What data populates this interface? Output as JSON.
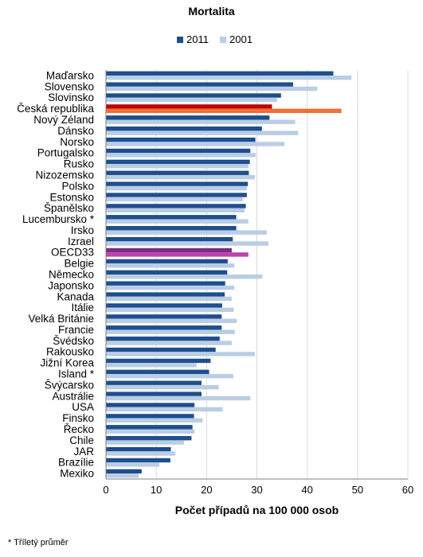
{
  "footnote": "* Tříletý průměr",
  "chart_data": {
    "type": "bar",
    "orientation": "horizontal",
    "title": "Mortalita",
    "xlabel": "Počet případů na 100 000 osob",
    "ylabel": "",
    "xlim": [
      0,
      60
    ],
    "xticks": [
      "0",
      "10",
      "20",
      "30",
      "40",
      "50",
      "60"
    ],
    "grid": true,
    "legend_position": "top",
    "categories": [
      "Maďarsko",
      "Slovensko",
      "Slovinsko",
      "Česká republika",
      "Nový Zéland",
      "Dánsko",
      "Norsko",
      "Portugalsko",
      "Rusko",
      "Nizozemsko",
      "Polsko",
      "Estonsko",
      "Španělsko",
      "Lucembursko *",
      "Irsko",
      "Izrael",
      "OECD33",
      "Belgie",
      "Německo",
      "Japonsko",
      "Kanada",
      "Itálie",
      "Velká Británie",
      "Francie",
      "Švédsko",
      "Rakousko",
      "Jižní Korea",
      "Island *",
      "Švýcarsko",
      "Austrálie",
      "USA",
      "Finsko",
      "Řecko",
      "Chile",
      "JAR",
      "Brazílie",
      "Mexiko"
    ],
    "series": [
      {
        "name": "2011",
        "color": "#1f4e8c",
        "values": [
          45.2,
          37.2,
          34.8,
          33.0,
          32.5,
          31.0,
          29.7,
          28.7,
          28.6,
          28.4,
          28.2,
          28.0,
          27.8,
          25.9,
          25.9,
          25.2,
          25.0,
          24.2,
          24.1,
          23.7,
          23.6,
          23.1,
          23.0,
          23.0,
          22.6,
          21.8,
          20.8,
          20.5,
          19.0,
          19.0,
          17.6,
          17.5,
          17.2,
          17.0,
          12.9,
          12.8,
          7.1
        ]
      },
      {
        "name": "2001",
        "color": "#b9cde5",
        "values": [
          48.8,
          42.0,
          34.0,
          46.8,
          37.6,
          38.2,
          35.5,
          29.8,
          28.3,
          29.6,
          28.0,
          27.2,
          27.5,
          28.3,
          32.0,
          32.3,
          28.3,
          25.5,
          31.1,
          25.5,
          25.0,
          25.4,
          26.0,
          25.6,
          25.0,
          29.6,
          18.0,
          25.3,
          22.4,
          28.7,
          23.2,
          19.2,
          17.6,
          15.5,
          13.8,
          10.6,
          6.5
        ]
      }
    ],
    "highlight": {
      "Česká republika": {
        "2011": "#c00000",
        "2001": "#f07030"
      },
      "OECD33": {
        "2011": "#7b2d83",
        "2001": "#c040b0"
      }
    }
  }
}
